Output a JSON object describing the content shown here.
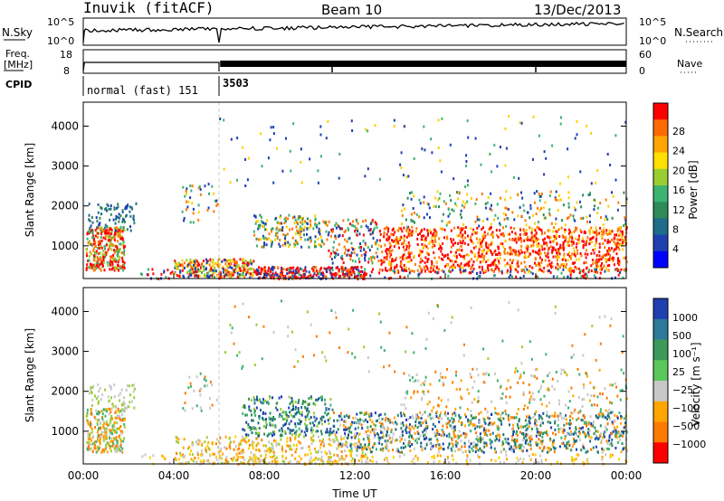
{
  "header": {
    "station": "Inuvik (fitACF)",
    "beam": "Beam 10",
    "date": "13/Dec/2013"
  },
  "top_panels": {
    "nsky": {
      "label": "N.Sky",
      "ticks": [
        "10^5",
        "10^0"
      ]
    },
    "nsearch": {
      "label": "N.Search",
      "ticks": [
        "10^5",
        "10^0"
      ]
    },
    "freq": {
      "label_line1": "Freq.",
      "label_line2": "[MHz]",
      "ticks": [
        "18",
        "8"
      ]
    },
    "nave": {
      "label": "Nave",
      "ticks": [
        "60",
        "0"
      ]
    },
    "cpid": {
      "label": "CPID",
      "segments": [
        {
          "start_hour": 0,
          "end_hour": 6,
          "text": "normal (fast) 151"
        },
        {
          "start_hour": 6,
          "end_hour": 24,
          "text": "3503"
        }
      ]
    }
  },
  "chart_data": [
    {
      "type": "heatmap",
      "name": "power-panel",
      "ylabel": "Slant Range [km]",
      "ylim": [
        180,
        4600
      ],
      "yticks": [
        "1000",
        "2000",
        "3000",
        "4000"
      ],
      "xlim": [
        0,
        24
      ],
      "colorbar": {
        "label": "Power [dB]",
        "ticks": [
          "28",
          "24",
          "20",
          "16",
          "12",
          "8",
          "4"
        ],
        "colors": [
          "#ff0000",
          "#ff6a00",
          "#ffa500",
          "#ffe000",
          "#9acd32",
          "#3cb371",
          "#2e8b57",
          "#1e6b8a",
          "#1f3fb0",
          "#0000ff"
        ]
      }
    },
    {
      "type": "heatmap",
      "name": "velocity-panel",
      "xlabel": "Time UT",
      "ylabel": "Slant Range [km]",
      "ylim": [
        180,
        4600
      ],
      "yticks": [
        "1000",
        "2000",
        "3000",
        "4000"
      ],
      "xlim": [
        0,
        24
      ],
      "xticks": [
        "00:00",
        "04:00",
        "08:00",
        "12:00",
        "16:00",
        "20:00",
        "00:00"
      ],
      "colorbar": {
        "label": "Velocity [m s⁻¹]",
        "ticks": [
          "1000",
          "500",
          "100",
          "25",
          "−25",
          "−100",
          "−500",
          "−1000"
        ],
        "colors": [
          "#1f3fb0",
          "#2a7a9a",
          "#3a9a5a",
          "#5cc85c",
          "#c8c8c8",
          "#ffa500",
          "#ff7a00",
          "#ff0000"
        ]
      }
    }
  ]
}
